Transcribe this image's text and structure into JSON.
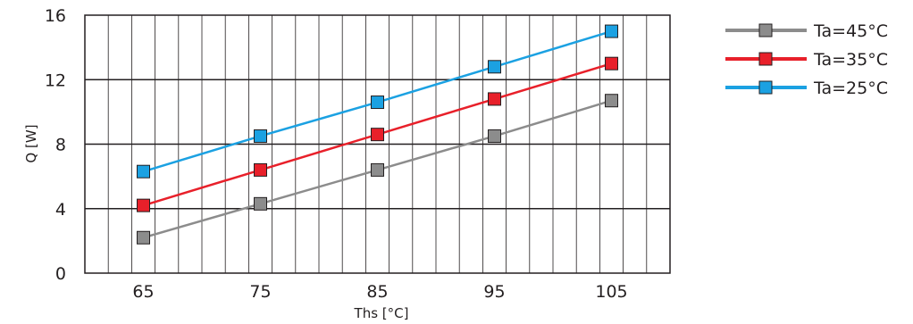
{
  "chart_data": {
    "type": "line",
    "x": [
      65,
      75,
      85,
      95,
      105
    ],
    "xlabel": "Ths [°C]",
    "ylabel": "Q [W]",
    "xlim": [
      60,
      110
    ],
    "ylim": [
      0,
      16
    ],
    "xticks": [
      65,
      75,
      85,
      95,
      105
    ],
    "yticks": [
      0,
      4,
      8,
      12,
      16
    ],
    "grid": true,
    "legend_position": "right",
    "series": [
      {
        "name": "Ta=45°C",
        "color": "#8c8c8c",
        "values": [
          2.2,
          4.3,
          6.4,
          8.5,
          10.7
        ]
      },
      {
        "name": "Ta=35°C",
        "color": "#e8202a",
        "values": [
          4.2,
          6.4,
          8.6,
          10.8,
          13.0
        ]
      },
      {
        "name": "Ta=25°C",
        "color": "#1ba1e2",
        "values": [
          6.3,
          8.5,
          10.6,
          12.8,
          15.0
        ]
      }
    ]
  }
}
